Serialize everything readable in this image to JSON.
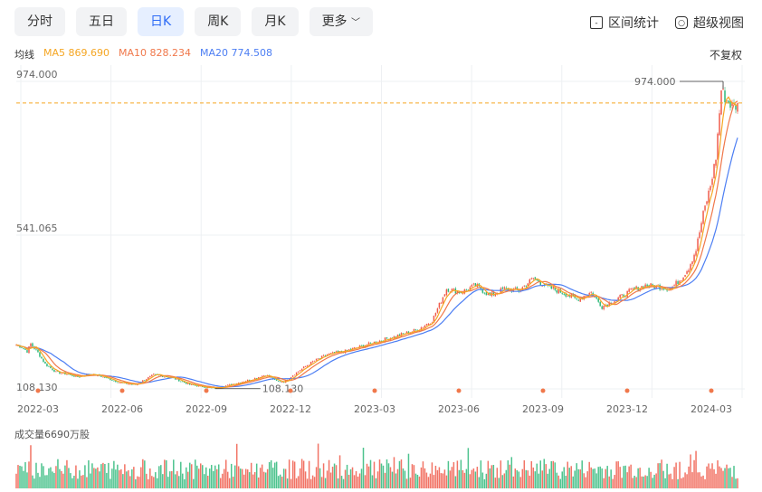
{
  "tabs": [
    {
      "label": "分时",
      "active": false
    },
    {
      "label": "五日",
      "active": false
    },
    {
      "label": "日K",
      "active": true
    },
    {
      "label": "周K",
      "active": false
    },
    {
      "label": "月K",
      "active": false
    },
    {
      "label": "更多",
      "active": false
    }
  ],
  "tools": {
    "range_stats": "区间统计",
    "super_view": "超级视图"
  },
  "ma": {
    "label": "均线",
    "ma5": "MA5 869.690",
    "ma10": "MA10 828.234",
    "ma20": "MA20 774.508"
  },
  "adjust": "不复权",
  "volume_label": "成交量6690万股",
  "colors": {
    "up": "#f05a4a",
    "down": "#2eb87a",
    "ma5": "#f5a623",
    "ma10": "#f0784b",
    "ma20": "#4c7ef3",
    "dash": "#f5a623"
  },
  "chart_data": {
    "type": "line",
    "ylim": [
      108.13,
      974.0
    ],
    "y_ticks": [
      "974.000",
      "541.065",
      "108.130"
    ],
    "x_ticks": [
      "2022-03",
      "2022-06",
      "2022-09",
      "2022-12",
      "2023-03",
      "2023-06",
      "2023-09",
      "2023-12",
      "2024-03"
    ],
    "max_label": "974.000",
    "min_label": "108.130",
    "price_anchors": [
      [
        0,
        232
      ],
      [
        3,
        226
      ],
      [
        6,
        214
      ],
      [
        8,
        235
      ],
      [
        12,
        210
      ],
      [
        16,
        178
      ],
      [
        22,
        155
      ],
      [
        28,
        150
      ],
      [
        34,
        142
      ],
      [
        40,
        150
      ],
      [
        46,
        145
      ],
      [
        52,
        135
      ],
      [
        58,
        125
      ],
      [
        66,
        120
      ],
      [
        76,
        148
      ],
      [
        86,
        140
      ],
      [
        96,
        120
      ],
      [
        106,
        112
      ],
      [
        110,
        110
      ],
      [
        120,
        122
      ],
      [
        130,
        135
      ],
      [
        138,
        148
      ],
      [
        144,
        130
      ],
      [
        148,
        128
      ],
      [
        156,
        158
      ],
      [
        164,
        185
      ],
      [
        172,
        205
      ],
      [
        182,
        215
      ],
      [
        192,
        230
      ],
      [
        202,
        245
      ],
      [
        212,
        260
      ],
      [
        222,
        275
      ],
      [
        230,
        300
      ],
      [
        238,
        390
      ],
      [
        246,
        380
      ],
      [
        254,
        400
      ],
      [
        262,
        370
      ],
      [
        270,
        390
      ],
      [
        278,
        385
      ],
      [
        286,
        420
      ],
      [
        294,
        395
      ],
      [
        302,
        380
      ],
      [
        310,
        360
      ],
      [
        318,
        380
      ],
      [
        324,
        340
      ],
      [
        332,
        360
      ],
      [
        340,
        385
      ],
      [
        348,
        400
      ],
      [
        356,
        395
      ],
      [
        362,
        390
      ],
      [
        368,
        420
      ],
      [
        372,
        450
      ],
      [
        376,
        500
      ],
      [
        380,
        600
      ],
      [
        384,
        680
      ],
      [
        387,
        760
      ],
      [
        390,
        950
      ],
      [
        393,
        920
      ],
      [
        396,
        905
      ]
    ]
  }
}
